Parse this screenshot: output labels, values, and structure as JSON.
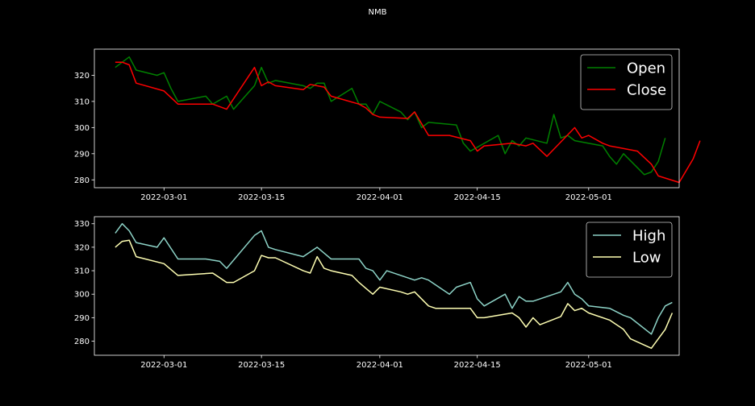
{
  "figure": {
    "title": "NMB",
    "background": "#000000",
    "axis_color": "#ffffff"
  },
  "chart_data": [
    {
      "type": "line",
      "title": "",
      "xlabel": "",
      "ylabel": "",
      "x_type": "date",
      "xlim": [
        "2022-02-19",
        "2022-05-14"
      ],
      "ylim": [
        277,
        330
      ],
      "xticks": [
        "2022-03-01",
        "2022-03-15",
        "2022-04-01",
        "2022-04-15",
        "2022-05-01"
      ],
      "yticks": [
        280,
        290,
        300,
        310,
        320
      ],
      "grid": false,
      "legend": "top-right",
      "series": [
        {
          "name": "Open",
          "color": "#008000",
          "points": [
            [
              "2022-02-22",
              323
            ],
            [
              "2022-02-23",
              325
            ],
            [
              "2022-02-24",
              327
            ],
            [
              "2022-02-25",
              322
            ],
            [
              "2022-02-28",
              320
            ],
            [
              "2022-03-01",
              321
            ],
            [
              "2022-03-02",
              315
            ],
            [
              "2022-03-03",
              310
            ],
            [
              "2022-03-07",
              312
            ],
            [
              "2022-03-08",
              309
            ],
            [
              "2022-03-10",
              312
            ],
            [
              "2022-03-11",
              307
            ],
            [
              "2022-03-14",
              316
            ],
            [
              "2022-03-15",
              323
            ],
            [
              "2022-03-16",
              317
            ],
            [
              "2022-03-17",
              318
            ],
            [
              "2022-03-21",
              316
            ],
            [
              "2022-03-22",
              315
            ],
            [
              "2022-03-23",
              317
            ],
            [
              "2022-03-24",
              317
            ],
            [
              "2022-03-25",
              310
            ],
            [
              "2022-03-28",
              315
            ],
            [
              "2022-03-29",
              309
            ],
            [
              "2022-03-30",
              309
            ],
            [
              "2022-03-31",
              305
            ],
            [
              "2022-04-01",
              310
            ],
            [
              "2022-04-04",
              306
            ],
            [
              "2022-04-05",
              303
            ],
            [
              "2022-04-06",
              306
            ],
            [
              "2022-04-07",
              300
            ],
            [
              "2022-04-08",
              302
            ],
            [
              "2022-04-12",
              301
            ],
            [
              "2022-04-13",
              294
            ],
            [
              "2022-04-14",
              291
            ],
            [
              "2022-04-18",
              297
            ],
            [
              "2022-04-19",
              290
            ],
            [
              "2022-04-20",
              295
            ],
            [
              "2022-04-21",
              293
            ],
            [
              "2022-04-22",
              296
            ],
            [
              "2022-04-25",
              294
            ],
            [
              "2022-04-26",
              305
            ],
            [
              "2022-04-27",
              296
            ],
            [
              "2022-04-28",
              297
            ],
            [
              "2022-04-29",
              295
            ],
            [
              "2022-05-03",
              293
            ],
            [
              "2022-05-04",
              289
            ],
            [
              "2022-05-05",
              286
            ],
            [
              "2022-05-06",
              290
            ],
            [
              "2022-05-09",
              282
            ],
            [
              "2022-05-10",
              283
            ],
            [
              "2022-05-11",
              287
            ],
            [
              "2022-05-12",
              296
            ]
          ]
        },
        {
          "name": "Close",
          "color": "#ff0000",
          "points": [
            [
              "2022-02-22",
              325
            ],
            [
              "2022-02-23",
              325
            ],
            [
              "2022-02-24",
              324
            ],
            [
              "2022-02-25",
              317
            ],
            [
              "2022-03-01",
              314
            ],
            [
              "2022-03-03",
              309
            ],
            [
              "2022-03-08",
              309
            ],
            [
              "2022-03-10",
              307
            ],
            [
              "2022-03-14",
              323
            ],
            [
              "2022-03-15",
              316
            ],
            [
              "2022-03-16",
              317.5
            ],
            [
              "2022-03-17",
              316
            ],
            [
              "2022-03-21",
              314.5
            ],
            [
              "2022-03-22",
              316.5
            ],
            [
              "2022-03-24",
              315.5
            ],
            [
              "2022-03-25",
              312
            ],
            [
              "2022-03-29",
              309
            ],
            [
              "2022-03-30",
              307.5
            ],
            [
              "2022-03-31",
              305
            ],
            [
              "2022-04-01",
              304
            ],
            [
              "2022-04-05",
              303.5
            ],
            [
              "2022-04-06",
              306
            ],
            [
              "2022-04-08",
              297
            ],
            [
              "2022-04-11",
              297
            ],
            [
              "2022-04-14",
              295
            ],
            [
              "2022-04-15",
              291
            ],
            [
              "2022-04-16",
              293
            ],
            [
              "2022-04-18",
              293.5
            ],
            [
              "2022-04-20",
              294
            ],
            [
              "2022-04-22",
              293
            ],
            [
              "2022-04-23",
              294
            ],
            [
              "2022-04-25",
              289
            ],
            [
              "2022-04-29",
              300
            ],
            [
              "2022-04-30",
              296
            ],
            [
              "2022-05-01",
              297
            ],
            [
              "2022-05-03",
              294
            ],
            [
              "2022-05-04",
              293
            ],
            [
              "2022-05-08",
              291
            ],
            [
              "2022-05-10",
              286
            ],
            [
              "2022-05-11",
              281.5
            ],
            [
              "2022-05-14",
              279
            ],
            [
              "2022-05-16",
              288
            ],
            [
              "2022-05-17",
              295
            ]
          ]
        }
      ]
    },
    {
      "type": "line",
      "title": "",
      "xlabel": "",
      "ylabel": "",
      "x_type": "date",
      "xlim": [
        "2022-02-19",
        "2022-05-14"
      ],
      "ylim": [
        274,
        333
      ],
      "xticks": [
        "2022-03-01",
        "2022-03-15",
        "2022-04-01",
        "2022-04-15",
        "2022-05-01"
      ],
      "yticks": [
        280,
        290,
        300,
        310,
        320,
        330
      ],
      "grid": false,
      "legend": "top-right",
      "series": [
        {
          "name": "High",
          "color": "#8dd3c7",
          "points": [
            [
              "2022-02-22",
              326
            ],
            [
              "2022-02-23",
              330
            ],
            [
              "2022-02-24",
              327
            ],
            [
              "2022-02-25",
              322
            ],
            [
              "2022-02-28",
              320
            ],
            [
              "2022-03-01",
              324
            ],
            [
              "2022-03-03",
              315
            ],
            [
              "2022-03-07",
              315
            ],
            [
              "2022-03-09",
              314
            ],
            [
              "2022-03-10",
              311
            ],
            [
              "2022-03-14",
              325
            ],
            [
              "2022-03-15",
              327
            ],
            [
              "2022-03-16",
              320
            ],
            [
              "2022-03-17",
              319
            ],
            [
              "2022-03-21",
              316
            ],
            [
              "2022-03-22",
              318
            ],
            [
              "2022-03-23",
              320
            ],
            [
              "2022-03-24",
              317.5
            ],
            [
              "2022-03-25",
              315
            ],
            [
              "2022-03-28",
              315
            ],
            [
              "2022-03-29",
              315
            ],
            [
              "2022-03-30",
              311
            ],
            [
              "2022-03-31",
              310
            ],
            [
              "2022-04-01",
              306
            ],
            [
              "2022-04-02",
              310
            ],
            [
              "2022-04-05",
              307
            ],
            [
              "2022-04-06",
              306
            ],
            [
              "2022-04-07",
              307
            ],
            [
              "2022-04-08",
              306
            ],
            [
              "2022-04-11",
              300
            ],
            [
              "2022-04-12",
              303
            ],
            [
              "2022-04-14",
              305
            ],
            [
              "2022-04-15",
              298
            ],
            [
              "2022-04-16",
              295
            ],
            [
              "2022-04-19",
              300
            ],
            [
              "2022-04-20",
              294
            ],
            [
              "2022-04-21",
              299
            ],
            [
              "2022-04-22",
              297
            ],
            [
              "2022-04-23",
              297
            ],
            [
              "2022-04-27",
              301
            ],
            [
              "2022-04-28",
              305
            ],
            [
              "2022-04-29",
              300
            ],
            [
              "2022-04-30",
              298
            ],
            [
              "2022-05-01",
              295
            ],
            [
              "2022-05-04",
              294
            ],
            [
              "2022-05-06",
              291
            ],
            [
              "2022-05-07",
              290
            ],
            [
              "2022-05-10",
              283
            ],
            [
              "2022-05-11",
              290
            ],
            [
              "2022-05-12",
              295
            ],
            [
              "2022-05-13",
              296.5
            ]
          ]
        },
        {
          "name": "Low",
          "color": "#ffffb3",
          "points": [
            [
              "2022-02-22",
              320
            ],
            [
              "2022-02-23",
              322.5
            ],
            [
              "2022-02-24",
              323
            ],
            [
              "2022-02-25",
              316
            ],
            [
              "2022-03-01",
              313
            ],
            [
              "2022-03-03",
              308
            ],
            [
              "2022-03-08",
              309
            ],
            [
              "2022-03-09",
              307
            ],
            [
              "2022-03-10",
              305
            ],
            [
              "2022-03-11",
              305
            ],
            [
              "2022-03-14",
              310
            ],
            [
              "2022-03-15",
              316.5
            ],
            [
              "2022-03-16",
              315.5
            ],
            [
              "2022-03-17",
              315.5
            ],
            [
              "2022-03-21",
              310
            ],
            [
              "2022-03-22",
              309
            ],
            [
              "2022-03-23",
              316
            ],
            [
              "2022-03-24",
              311
            ],
            [
              "2022-03-25",
              310
            ],
            [
              "2022-03-28",
              308
            ],
            [
              "2022-03-29",
              305
            ],
            [
              "2022-03-30",
              302.5
            ],
            [
              "2022-03-31",
              300
            ],
            [
              "2022-04-01",
              303
            ],
            [
              "2022-04-04",
              301
            ],
            [
              "2022-04-05",
              300
            ],
            [
              "2022-04-06",
              301
            ],
            [
              "2022-04-08",
              295
            ],
            [
              "2022-04-09",
              294
            ],
            [
              "2022-04-14",
              294
            ],
            [
              "2022-04-15",
              290
            ],
            [
              "2022-04-16",
              290
            ],
            [
              "2022-04-20",
              292
            ],
            [
              "2022-04-21",
              290
            ],
            [
              "2022-04-22",
              286
            ],
            [
              "2022-04-23",
              290
            ],
            [
              "2022-04-24",
              287
            ],
            [
              "2022-04-27",
              290.5
            ],
            [
              "2022-04-28",
              296
            ],
            [
              "2022-04-29",
              293
            ],
            [
              "2022-04-30",
              294
            ],
            [
              "2022-05-01",
              292
            ],
            [
              "2022-05-04",
              289
            ],
            [
              "2022-05-06",
              285
            ],
            [
              "2022-05-07",
              281
            ],
            [
              "2022-05-10",
              277
            ],
            [
              "2022-05-12",
              285
            ],
            [
              "2022-05-13",
              292
            ]
          ]
        }
      ]
    }
  ]
}
